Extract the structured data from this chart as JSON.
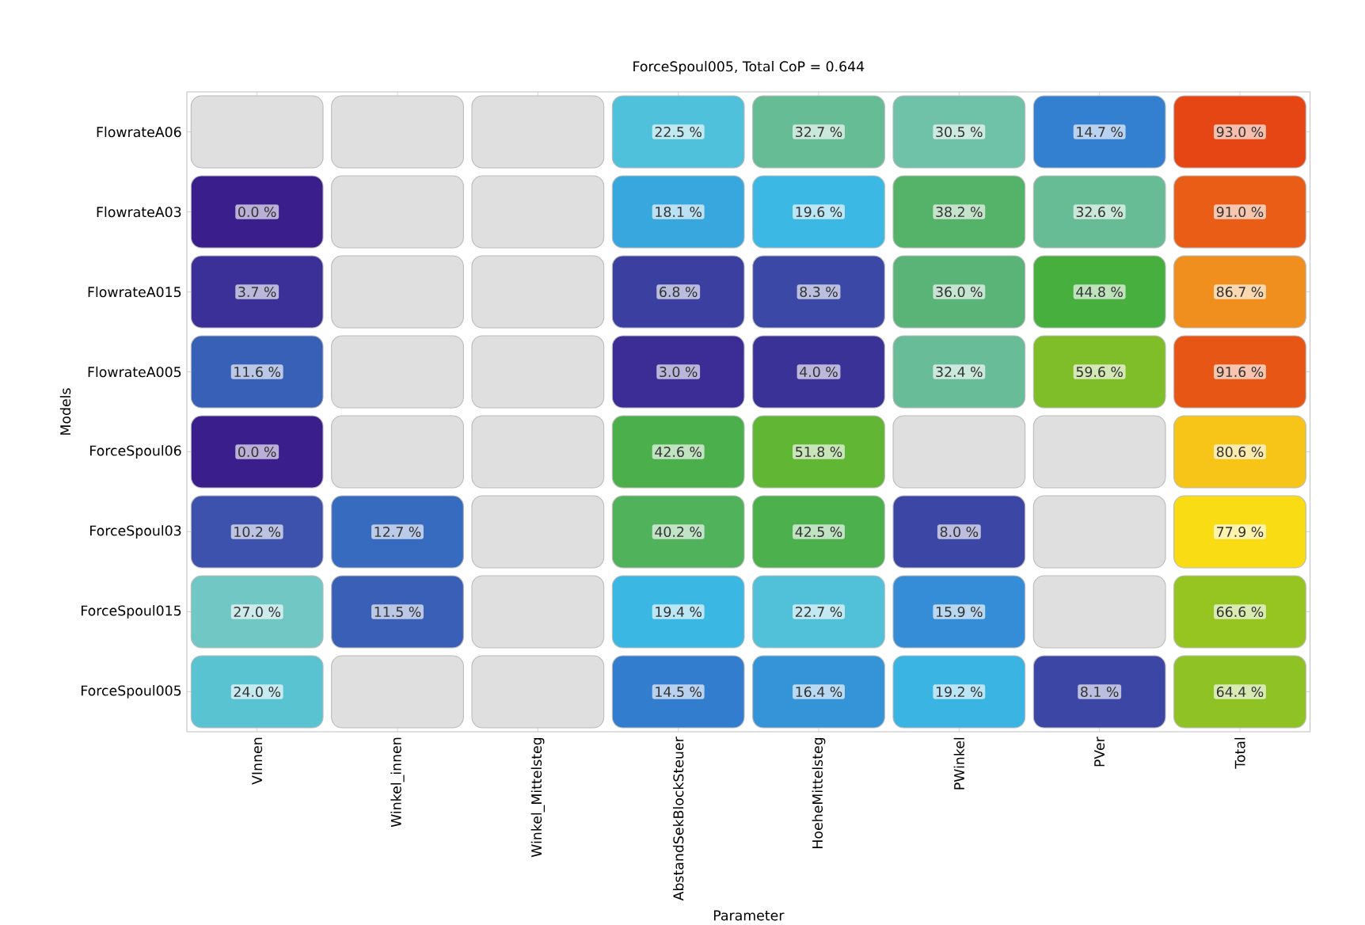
{
  "chart_data": {
    "type": "heatmap",
    "title": "ForceSpoul005, Total CoP = 0.644",
    "xlabel": "Parameter",
    "ylabel": "Models",
    "categories": [
      "VInnen",
      "Winkel_innen",
      "Winkel_Mittelsteg",
      "AbstandSekBlockSteuer",
      "HoeheMittelsteg",
      "PWinkel",
      "PVer",
      "Total"
    ],
    "y_categories": [
      "FlowrateA06",
      "FlowrateA03",
      "FlowrateA015",
      "FlowrateA005",
      "ForceSpoul06",
      "ForceSpoul03",
      "ForceSpoul015",
      "ForceSpoul005"
    ],
    "cells": [
      [
        null,
        null,
        null,
        22.5,
        32.7,
        30.5,
        14.7,
        93.0
      ],
      [
        0.0,
        null,
        null,
        18.1,
        19.6,
        38.2,
        32.6,
        91.0
      ],
      [
        3.7,
        null,
        null,
        6.8,
        8.3,
        36.0,
        44.8,
        86.7
      ],
      [
        11.6,
        null,
        null,
        3.0,
        4.0,
        32.4,
        59.6,
        91.6
      ],
      [
        0.0,
        null,
        null,
        42.6,
        51.8,
        null,
        null,
        80.6
      ],
      [
        10.2,
        12.7,
        null,
        40.2,
        42.5,
        8.0,
        null,
        77.9
      ],
      [
        27.0,
        11.5,
        null,
        19.4,
        22.7,
        15.9,
        null,
        66.6
      ],
      [
        24.0,
        null,
        null,
        14.5,
        16.4,
        19.2,
        8.1,
        64.4
      ]
    ],
    "cell_labels": [
      [
        null,
        null,
        null,
        "22.5 %",
        "32.7 %",
        "30.5 %",
        "14.7 %",
        "93.0 %"
      ],
      [
        "0.0 %",
        null,
        null,
        "18.1 %",
        "19.6 %",
        "38.2 %",
        "32.6 %",
        "91.0 %"
      ],
      [
        "3.7 %",
        null,
        null,
        "6.8 %",
        "8.3 %",
        "36.0 %",
        "44.8 %",
        "86.7 %"
      ],
      [
        "11.6 %",
        null,
        null,
        "3.0 %",
        "4.0 %",
        "32.4 %",
        "59.6 %",
        "91.6 %"
      ],
      [
        "0.0 %",
        null,
        null,
        "42.6 %",
        "51.8 %",
        null,
        null,
        "80.6 %"
      ],
      [
        "10.2 %",
        "12.7 %",
        null,
        "40.2 %",
        "42.5 %",
        "8.0 %",
        null,
        "77.9 %"
      ],
      [
        "27.0 %",
        "11.5 %",
        null,
        "19.4 %",
        "22.7 %",
        "15.9 %",
        null,
        "66.6 %"
      ],
      [
        "24.0 %",
        null,
        null,
        "14.5 %",
        "16.4 %",
        "19.2 %",
        "8.1 %",
        "64.4 %"
      ]
    ]
  }
}
